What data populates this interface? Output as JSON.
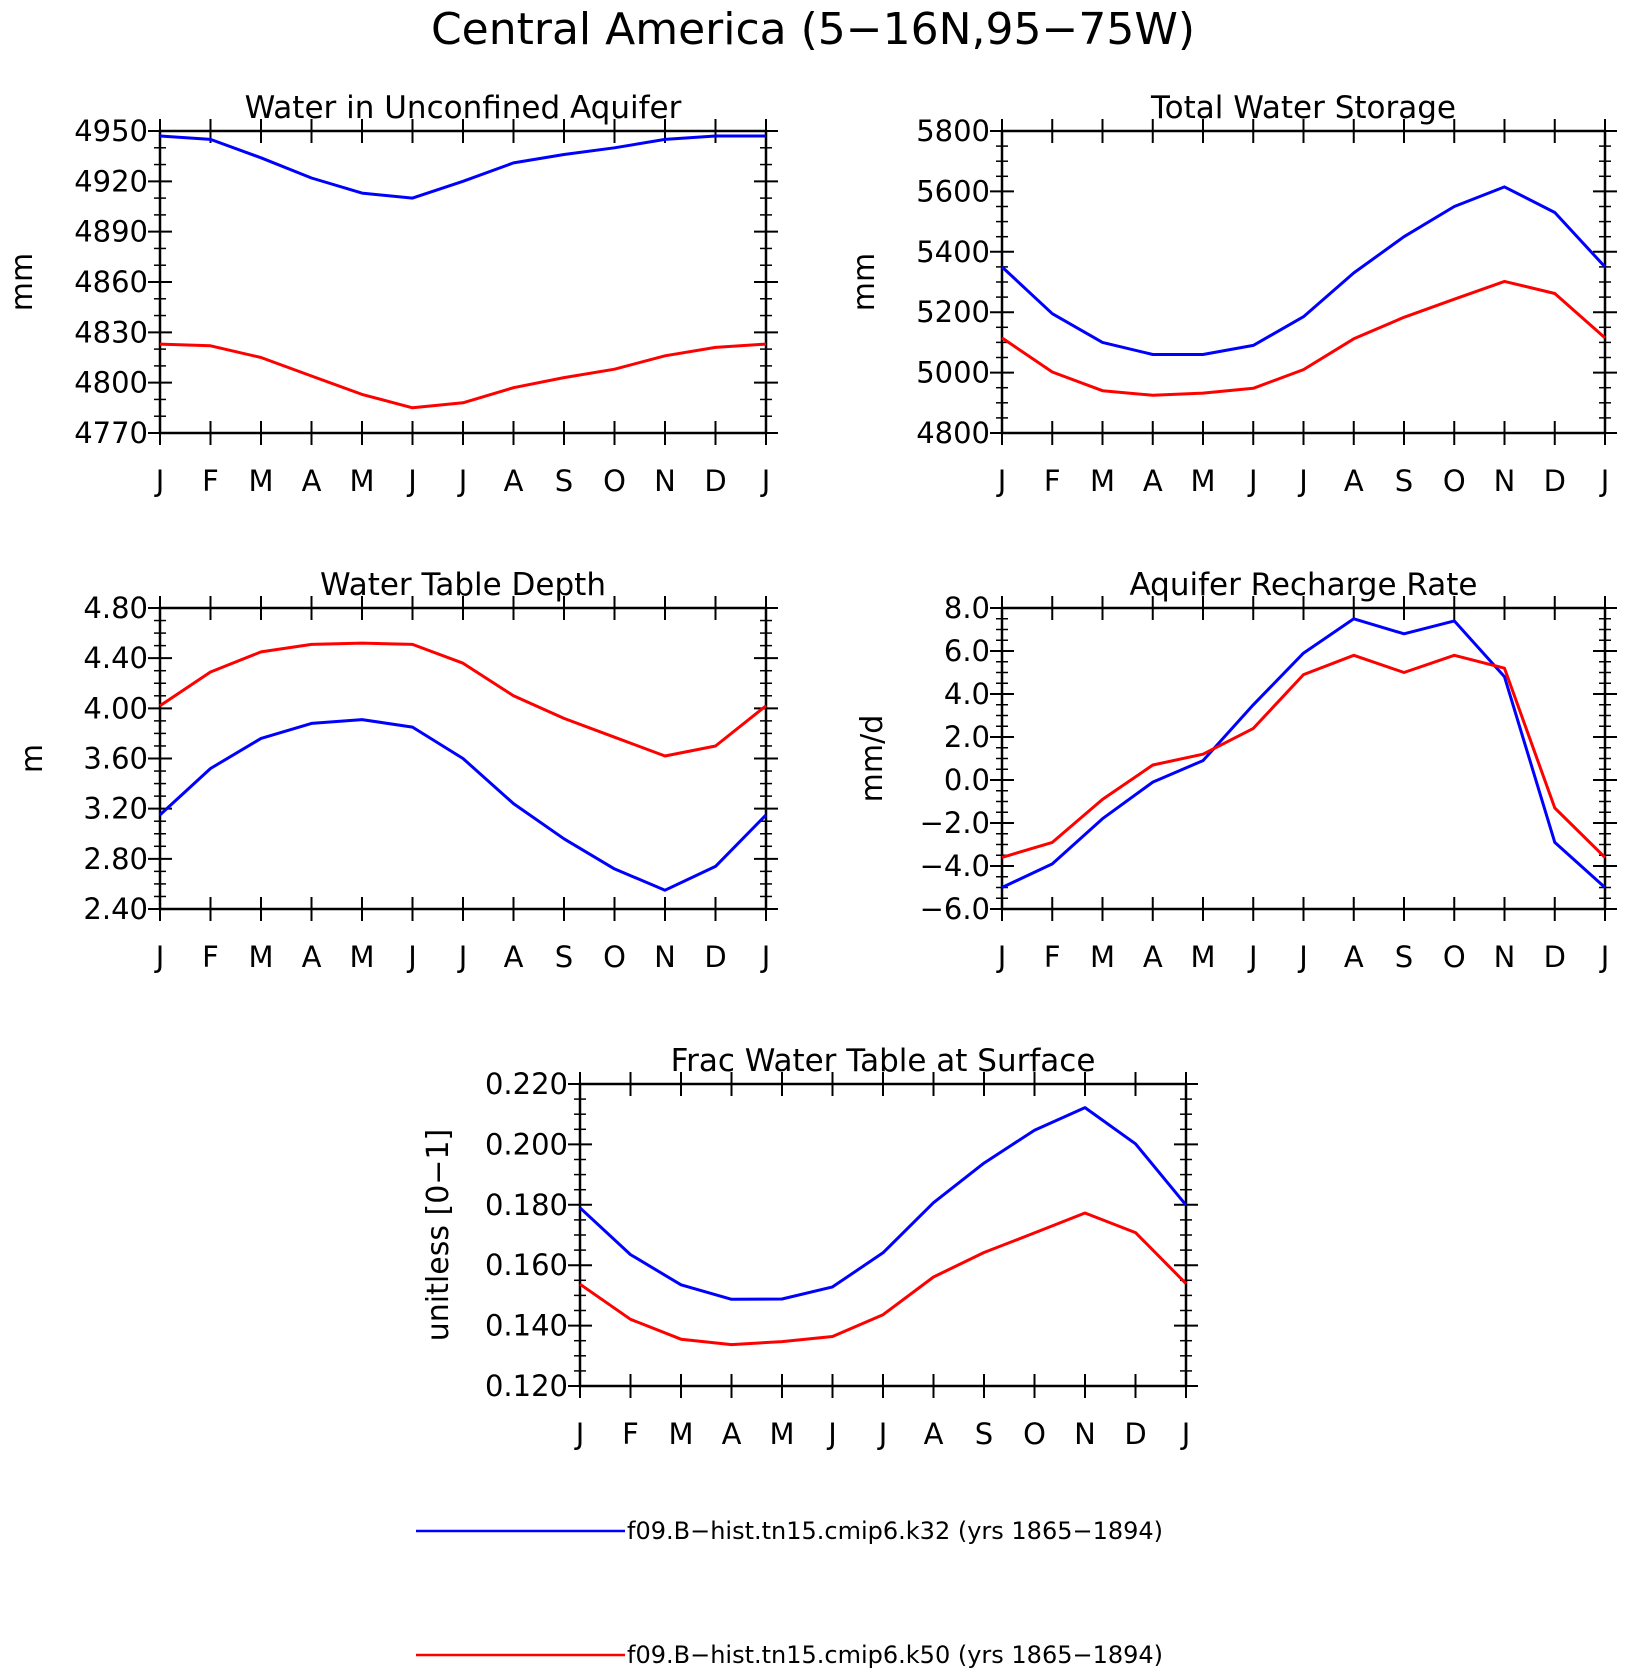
{
  "figure": {
    "title": "Central America (5−16N,95−75W)"
  },
  "legend": [
    {
      "name": "f09.B−hist.tn15.cmip6.k32 (yrs 1865−1894)",
      "color": "#0000ff"
    },
    {
      "name": "f09.B−hist.tn15.cmip6.k50 (yrs 1865−1894)",
      "color": "#ff0000"
    }
  ],
  "chart_data": [
    {
      "type": "line",
      "title": "Water in Unconfined Aquifer",
      "ylabel": "mm",
      "xlabel": "",
      "categories": [
        "J",
        "F",
        "M",
        "A",
        "M",
        "J",
        "J",
        "A",
        "S",
        "O",
        "N",
        "D",
        "J"
      ],
      "yticks": [
        "4950",
        "4920",
        "4890",
        "4860",
        "4830",
        "4800",
        "4770"
      ],
      "ylim": [
        4770,
        4950
      ],
      "minor_per_major": 2,
      "series": [
        {
          "color": "#0000ff",
          "values": [
            4947,
            4945,
            4934,
            4922,
            4913,
            4910,
            4920,
            4931,
            4936,
            4940,
            4945,
            4947,
            4947
          ]
        },
        {
          "color": "#ff0000",
          "values": [
            4823,
            4822,
            4815,
            4804,
            4793,
            4785,
            4788,
            4797,
            4803,
            4808,
            4816,
            4821,
            4823
          ]
        }
      ]
    },
    {
      "type": "line",
      "title": "Total Water Storage",
      "ylabel": "mm",
      "xlabel": "",
      "categories": [
        "J",
        "F",
        "M",
        "A",
        "M",
        "J",
        "J",
        "A",
        "S",
        "O",
        "N",
        "D",
        "J"
      ],
      "yticks": [
        "5800",
        "5600",
        "5400",
        "5200",
        "5000",
        "4800"
      ],
      "ylim": [
        4800,
        5800
      ],
      "minor_per_major": 3,
      "series": [
        {
          "color": "#0000ff",
          "values": [
            5350,
            5195,
            5100,
            5060,
            5060,
            5090,
            5185,
            5330,
            5450,
            5550,
            5615,
            5530,
            5350
          ]
        },
        {
          "color": "#ff0000",
          "values": [
            5115,
            5002,
            4940,
            4925,
            4932,
            4948,
            5010,
            5112,
            5183,
            5243,
            5302,
            5262,
            5115
          ]
        }
      ]
    },
    {
      "type": "line",
      "title": "Water Table Depth",
      "ylabel": "m",
      "xlabel": "",
      "categories": [
        "J",
        "F",
        "M",
        "A",
        "M",
        "J",
        "J",
        "A",
        "S",
        "O",
        "N",
        "D",
        "J"
      ],
      "yticks": [
        "4.80",
        "4.40",
        "4.00",
        "3.60",
        "3.20",
        "2.80",
        "2.40"
      ],
      "ylim": [
        2.4,
        4.8
      ],
      "minor_per_major": 3,
      "series": [
        {
          "color": "#0000ff",
          "values": [
            3.15,
            3.52,
            3.76,
            3.88,
            3.91,
            3.85,
            3.6,
            3.24,
            2.96,
            2.72,
            2.55,
            2.74,
            3.15
          ]
        },
        {
          "color": "#ff0000",
          "values": [
            4.02,
            4.29,
            4.45,
            4.51,
            4.52,
            4.51,
            4.36,
            4.1,
            3.92,
            3.77,
            3.62,
            3.7,
            4.02
          ]
        }
      ]
    },
    {
      "type": "line",
      "title": "Aquifer Recharge Rate",
      "ylabel": "mm/d",
      "xlabel": "",
      "categories": [
        "J",
        "F",
        "M",
        "A",
        "M",
        "J",
        "J",
        "A",
        "S",
        "O",
        "N",
        "D",
        "J"
      ],
      "yticks": [
        "8.0",
        "6.0",
        "4.0",
        "2.0",
        "0.0",
        "−2.0",
        "−4.0",
        "−6.0"
      ],
      "ylim": [
        -6,
        8
      ],
      "minor_per_major": 3,
      "series": [
        {
          "color": "#0000ff",
          "values": [
            -5.0,
            -3.9,
            -1.8,
            -0.1,
            0.9,
            3.5,
            5.9,
            7.5,
            6.8,
            7.4,
            4.8,
            -2.9,
            -5.0
          ]
        },
        {
          "color": "#ff0000",
          "values": [
            -3.6,
            -2.9,
            -0.9,
            0.7,
            1.2,
            2.4,
            4.9,
            5.8,
            5.0,
            5.8,
            5.2,
            -1.3,
            -3.6
          ]
        }
      ]
    },
    {
      "type": "line",
      "title": "Frac Water Table at Surface",
      "ylabel": "unitless [0−1]",
      "xlabel": "",
      "categories": [
        "J",
        "F",
        "M",
        "A",
        "M",
        "J",
        "J",
        "A",
        "S",
        "O",
        "N",
        "D",
        "J"
      ],
      "yticks": [
        "0.220",
        "0.200",
        "0.180",
        "0.160",
        "0.140",
        "0.120"
      ],
      "ylim": [
        0.12,
        0.22
      ],
      "minor_per_major": 3,
      "series": [
        {
          "color": "#0000ff",
          "values": [
            0.179,
            0.1635,
            0.1535,
            0.1487,
            0.1488,
            0.1528,
            0.1641,
            0.1807,
            0.1938,
            0.2047,
            0.2122,
            0.2002,
            0.1799
          ]
        },
        {
          "color": "#ff0000",
          "values": [
            0.1537,
            0.1421,
            0.1355,
            0.1337,
            0.1347,
            0.1364,
            0.1436,
            0.1561,
            0.1642,
            0.1707,
            0.1773,
            0.1708,
            0.1539
          ]
        }
      ]
    }
  ]
}
